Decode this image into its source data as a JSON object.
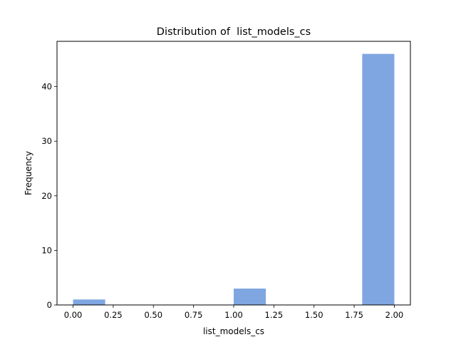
{
  "chart_data": {
    "type": "bar",
    "title": "Distribution of  list_models_cs",
    "xlabel": "list_models_cs",
    "ylabel": "Frequency",
    "xlim": [
      -0.1,
      2.1
    ],
    "ylim": [
      0,
      48.3
    ],
    "xticks": [
      0.0,
      0.25,
      0.5,
      0.75,
      1.0,
      1.25,
      1.5,
      1.75,
      2.0
    ],
    "xtick_labels": [
      "0.00",
      "0.25",
      "0.50",
      "0.75",
      "1.00",
      "1.25",
      "1.50",
      "1.75",
      "2.00"
    ],
    "yticks": [
      0,
      10,
      20,
      30,
      40
    ],
    "ytick_labels": [
      "0",
      "10",
      "20",
      "30",
      "40"
    ],
    "bins": [
      {
        "start": 0.0,
        "end": 0.2,
        "count": 1
      },
      {
        "start": 0.2,
        "end": 0.4,
        "count": 0
      },
      {
        "start": 0.4,
        "end": 0.6,
        "count": 0
      },
      {
        "start": 0.6,
        "end": 0.8,
        "count": 0
      },
      {
        "start": 0.8,
        "end": 1.0,
        "count": 0
      },
      {
        "start": 1.0,
        "end": 1.2,
        "count": 3
      },
      {
        "start": 1.2,
        "end": 1.4,
        "count": 0
      },
      {
        "start": 1.4,
        "end": 1.6,
        "count": 0
      },
      {
        "start": 1.6,
        "end": 1.8,
        "count": 0
      },
      {
        "start": 1.8,
        "end": 2.0,
        "count": 46
      }
    ],
    "bar_color": "#7fa6e1",
    "grid": false,
    "legend": "none"
  }
}
